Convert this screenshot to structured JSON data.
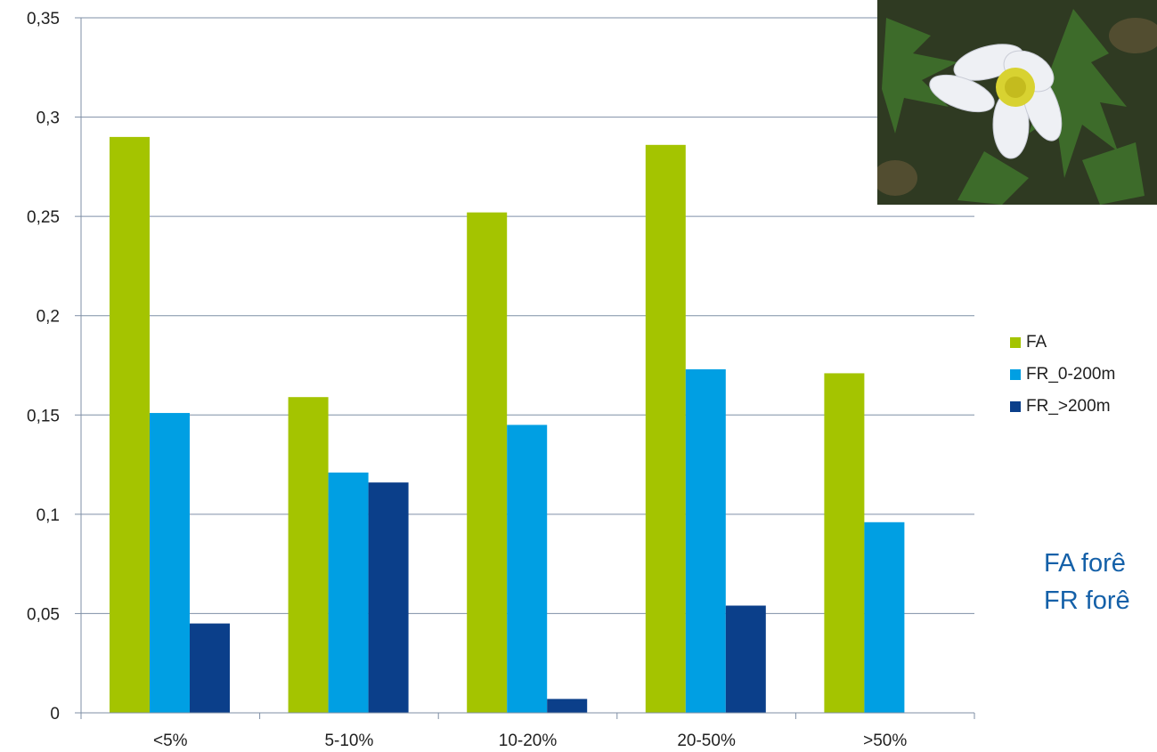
{
  "chart_data": {
    "type": "bar",
    "categories": [
      "<5%",
      "5-10%",
      "10-20%",
      "20-50%",
      ">50%"
    ],
    "series": [
      {
        "name": "FA",
        "color": "#a4c400",
        "values": [
          0.29,
          0.159,
          0.252,
          0.286,
          0.171
        ]
      },
      {
        "name": "FR_0-200m",
        "color": "#009fe3",
        "values": [
          0.151,
          0.121,
          0.145,
          0.173,
          0.096
        ]
      },
      {
        "name": "FR_>200m",
        "color": "#0b3f8a",
        "values": [
          0.045,
          0.116,
          0.007,
          0.054,
          0
        ]
      }
    ],
    "ylim": [
      0,
      0.35
    ],
    "yticks": [
      0,
      0.05,
      0.1,
      0.15,
      0.2,
      0.25,
      0.3,
      0.35
    ],
    "ytick_labels": [
      "0",
      "0,05",
      "0,1",
      "0,15",
      "0,2",
      "0,25",
      "0,3",
      "0,35"
    ],
    "grid": true,
    "legend_position": "right"
  },
  "legend": [
    {
      "label": "FA",
      "color": "#a4c400"
    },
    {
      "label": "FR_0-200m",
      "color": "#009fe3"
    },
    {
      "label": "FR_>200m",
      "color": "#0b3f8a"
    }
  ],
  "caption": {
    "line1": "FA forê",
    "line2": "FR forê"
  },
  "photo": {
    "icon": "anemone-flower-photo"
  }
}
